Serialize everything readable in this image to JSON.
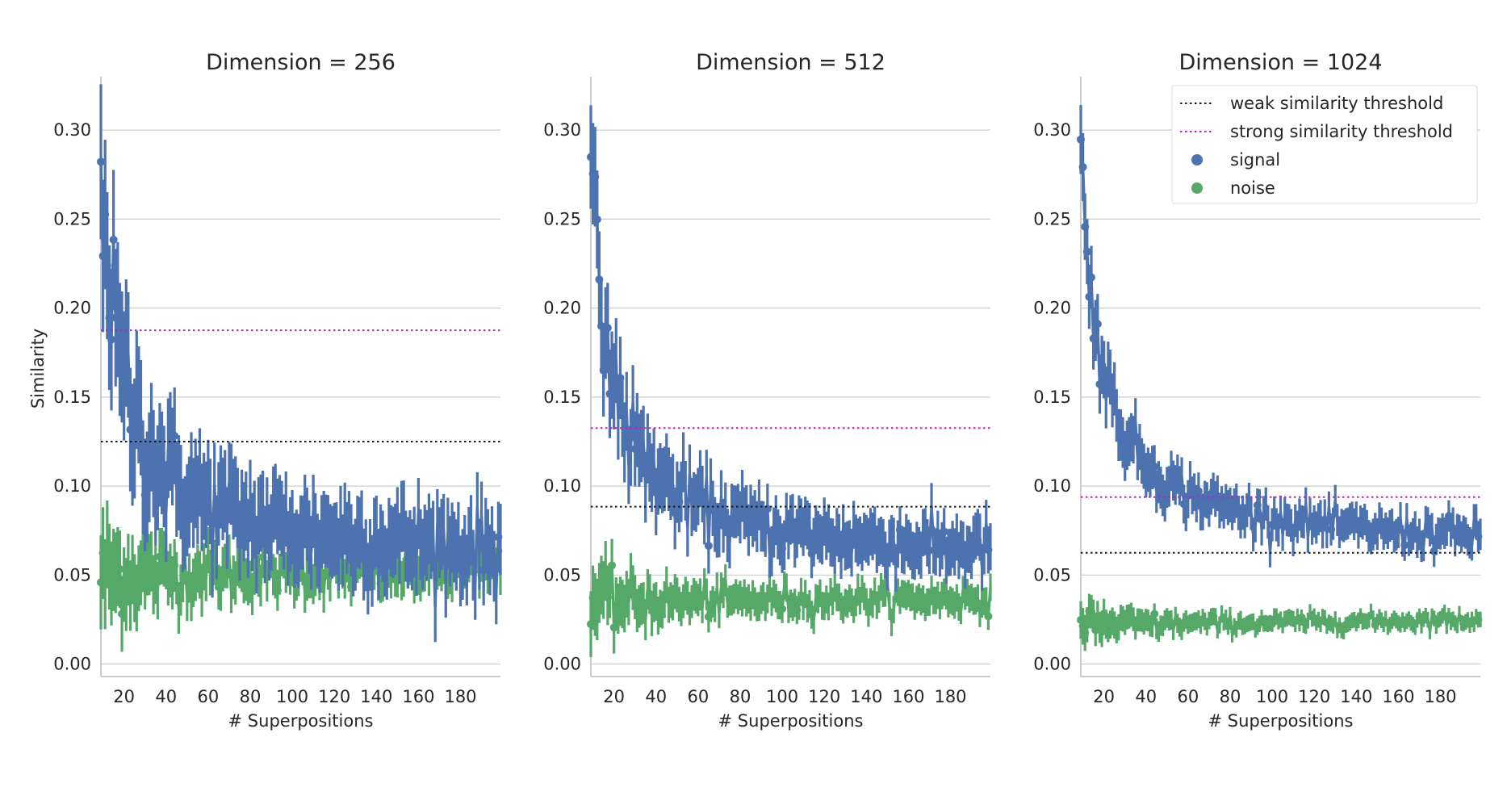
{
  "chart_data": [
    {
      "type": "scatter",
      "title": "Dimension = 256",
      "xlabel": "# Superpositions",
      "ylabel": "Similarity",
      "xlim": [
        9,
        199
      ],
      "ylim": [
        -0.007,
        0.33
      ],
      "xticks": [
        20,
        40,
        60,
        80,
        100,
        120,
        140,
        160,
        180
      ],
      "yticks": [
        "0.00",
        "0.05",
        "0.10",
        "0.15",
        "0.20",
        "0.25",
        "0.30"
      ],
      "grid": "horizontal",
      "thresholds": {
        "weak": 0.125,
        "strong": 0.1875
      },
      "signal": {
        "mean_model": "0.0625 + 2.2/n",
        "start": 0.29,
        "end": 0.065,
        "spread": 0.018
      },
      "noise": {
        "start": 0.05,
        "end": 0.053,
        "spread": 0.01
      }
    },
    {
      "type": "scatter",
      "title": "Dimension = 512",
      "xlabel": "# Superpositions",
      "ylabel": "",
      "xlim": [
        9,
        199
      ],
      "ylim": [
        -0.007,
        0.33
      ],
      "xticks": [
        20,
        40,
        60,
        80,
        100,
        120,
        140,
        160,
        180
      ],
      "yticks": [
        "0.00",
        "0.05",
        "0.10",
        "0.15",
        "0.20",
        "0.25",
        "0.30"
      ],
      "grid": "horizontal",
      "thresholds": {
        "weak": 0.0884,
        "strong": 0.1326
      },
      "signal": {
        "mean_model": "0.0442 + 2.4/n",
        "start": 0.285,
        "end": 0.065,
        "spread": 0.012
      },
      "noise": {
        "start": 0.035,
        "end": 0.037,
        "spread": 0.007
      }
    },
    {
      "type": "scatter",
      "title": "Dimension = 1024",
      "xlabel": "# Superpositions",
      "ylabel": "",
      "xlim": [
        9,
        199
      ],
      "ylim": [
        -0.007,
        0.33
      ],
      "xticks": [
        20,
        40,
        60,
        80,
        100,
        120,
        140,
        160,
        180
      ],
      "yticks": [
        "0.00",
        "0.05",
        "0.10",
        "0.15",
        "0.20",
        "0.25",
        "0.30"
      ],
      "grid": "horizontal",
      "thresholds": {
        "weak": 0.0625,
        "strong": 0.0938
      },
      "signal": {
        "mean_model": "0.0312 + 2.6/n",
        "start": 0.29,
        "end": 0.072,
        "spread": 0.008
      },
      "noise": {
        "start": 0.022,
        "end": 0.025,
        "spread": 0.004
      }
    }
  ],
  "legend": {
    "placement": "upper-right",
    "items": [
      {
        "label": "weak similarity threshold",
        "kind": "dotted-line",
        "color": "#1a1a1a"
      },
      {
        "label": "strong similarity threshold",
        "kind": "dotted-line",
        "color": "#c020c0"
      },
      {
        "label": "signal",
        "kind": "marker",
        "color": "#4c72b0"
      },
      {
        "label": "noise",
        "kind": "marker",
        "color": "#55a868"
      }
    ]
  },
  "colors": {
    "signal": "#4c72b0",
    "noise": "#55a868",
    "weak": "#1a1a1a",
    "strong": "#c020c0",
    "grid": "#cccccc",
    "axis": "#bbbbbb"
  }
}
